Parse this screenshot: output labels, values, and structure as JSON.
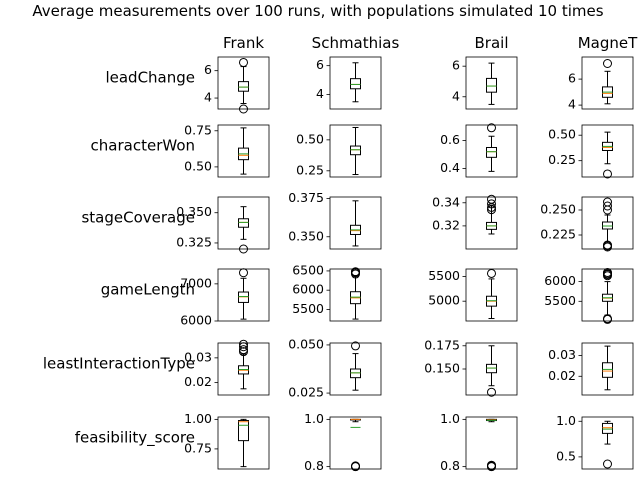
{
  "title": "Average measurements over 100 runs, with populations simulated 10 times",
  "chart_data": {
    "type": "box",
    "columns": [
      "Frank",
      "Schmathias",
      "Brail",
      "MagneT"
    ],
    "rows": [
      "leadChange",
      "characterWon",
      "stageCoverage",
      "gameLength",
      "leastInteractionType",
      "feasibility_score"
    ],
    "panels": [
      [
        {
          "ylim": [
            3.2,
            7.0
          ],
          "ticks": [
            4,
            6
          ],
          "tick_labels": [
            "4",
            "6"
          ],
          "whislo": 3.6,
          "q1": 4.5,
          "med": 4.8,
          "mean": 4.8,
          "q3": 5.2,
          "whishi": 6.3,
          "fliers": [
            3.2,
            6.6
          ]
        },
        {
          "ylim": [
            3.0,
            6.6
          ],
          "ticks": [
            4,
            6
          ],
          "tick_labels": [
            "4",
            "6"
          ],
          "whislo": 3.5,
          "q1": 4.4,
          "med": 4.7,
          "mean": 4.7,
          "q3": 5.1,
          "whishi": 6.2,
          "fliers": []
        },
        {
          "ylim": [
            3.2,
            6.6
          ],
          "ticks": [
            4,
            6
          ],
          "tick_labels": [
            "4",
            "6"
          ],
          "whislo": 3.5,
          "q1": 4.3,
          "med": 4.7,
          "mean": 4.7,
          "q3": 5.2,
          "whishi": 6.2,
          "fliers": []
        },
        {
          "ylim": [
            3.7,
            7.7
          ],
          "ticks": [
            4,
            6
          ],
          "tick_labels": [
            "4",
            "6"
          ],
          "whislo": 4.1,
          "q1": 4.6,
          "med": 4.9,
          "mean": 5.0,
          "q3": 5.4,
          "whishi": 6.6,
          "fliers": [
            7.2
          ]
        }
      ],
      [
        {
          "ylim": [
            0.43,
            0.79
          ],
          "ticks": [
            0.5,
            0.75
          ],
          "tick_labels": [
            "0.50",
            "0.75"
          ],
          "whislo": 0.45,
          "q1": 0.55,
          "med": 0.58,
          "mean": 0.59,
          "q3": 0.63,
          "whishi": 0.77,
          "fliers": []
        },
        {
          "ylim": [
            0.2,
            0.62
          ],
          "ticks": [
            0.25,
            0.5
          ],
          "tick_labels": [
            "0.25",
            "0.50"
          ],
          "whislo": 0.22,
          "q1": 0.38,
          "med": 0.42,
          "mean": 0.42,
          "q3": 0.45,
          "whishi": 0.6,
          "fliers": []
        },
        {
          "ylim": [
            0.34,
            0.71
          ],
          "ticks": [
            0.4,
            0.6
          ],
          "tick_labels": [
            "0.4",
            "0.6"
          ],
          "whislo": 0.38,
          "q1": 0.48,
          "med": 0.52,
          "mean": 0.52,
          "q3": 0.55,
          "whishi": 0.63,
          "fliers": [
            0.69
          ]
        },
        {
          "ylim": [
            0.09,
            0.6
          ],
          "ticks": [
            0.25,
            0.5
          ],
          "tick_labels": [
            "0.25",
            "0.50"
          ],
          "whislo": 0.22,
          "q1": 0.35,
          "med": 0.38,
          "mean": 0.39,
          "q3": 0.43,
          "whishi": 0.53,
          "fliers": [
            0.12
          ]
        }
      ],
      [
        {
          "ylim": [
            0.32,
            0.363
          ],
          "ticks": [
            0.325,
            0.35
          ],
          "tick_labels": [
            "0.325",
            "0.350"
          ],
          "whislo": 0.328,
          "q1": 0.338,
          "med": 0.342,
          "mean": 0.342,
          "q3": 0.345,
          "whishi": 0.355,
          "fliers": [
            0.32
          ]
        },
        {
          "ylim": [
            0.342,
            0.376
          ],
          "ticks": [
            0.35,
            0.375
          ],
          "tick_labels": [
            "0.350",
            "0.375"
          ],
          "whislo": 0.344,
          "q1": 0.3515,
          "med": 0.354,
          "mean": 0.3545,
          "q3": 0.3575,
          "whishi": 0.3735,
          "fliers": []
        },
        {
          "ylim": [
            0.3,
            0.345
          ],
          "ticks": [
            0.32,
            0.34
          ],
          "tick_labels": [
            "0.32",
            "0.34"
          ],
          "whislo": 0.313,
          "q1": 0.317,
          "med": 0.32,
          "mean": 0.32,
          "q3": 0.323,
          "whishi": 0.338,
          "fliers": [
            0.334,
            0.336,
            0.339,
            0.343
          ]
        },
        {
          "ylim": [
            0.211,
            0.263
          ],
          "ticks": [
            0.225,
            0.25
          ],
          "tick_labels": [
            "0.225",
            "0.250"
          ],
          "whislo": 0.218,
          "q1": 0.231,
          "med": 0.234,
          "mean": 0.234,
          "q3": 0.238,
          "whishi": 0.245,
          "fliers": [
            0.213,
            0.214,
            0.215,
            0.25,
            0.254,
            0.258
          ]
        }
      ],
      [
        {
          "ylim": [
            6000,
            7400
          ],
          "ticks": [
            6000,
            7000
          ],
          "tick_labels": [
            "6000",
            "7000"
          ],
          "whislo": 6050,
          "q1": 6500,
          "med": 6650,
          "mean": 6660,
          "q3": 6780,
          "whishi": 7150,
          "fliers": [
            7300
          ]
        },
        {
          "ylim": [
            5200,
            6550
          ],
          "ticks": [
            5500,
            6000,
            6500
          ],
          "tick_labels": [
            "5500",
            "6000",
            "6500"
          ],
          "whislo": 5250,
          "q1": 5650,
          "med": 5800,
          "mean": 5820,
          "q3": 5960,
          "whishi": 6380,
          "fliers": [
            6420,
            6450,
            6470,
            6480
          ]
        },
        {
          "ylim": [
            4600,
            5650
          ],
          "ticks": [
            5000,
            5500
          ],
          "tick_labels": [
            "5000",
            "5500"
          ],
          "whislo": 4650,
          "q1": 4900,
          "med": 5000,
          "mean": 5010,
          "q3": 5100,
          "whishi": 5450,
          "fliers": [
            5560
          ]
        },
        {
          "ylim": [
            5000,
            6320
          ],
          "ticks": [
            5500,
            6000
          ],
          "tick_labels": [
            "5500",
            "6000"
          ],
          "whislo": 5150,
          "q1": 5500,
          "med": 5580,
          "mean": 5590,
          "q3": 5680,
          "whishi": 6000,
          "fliers": [
            5040,
            5060,
            6150,
            6180,
            6200,
            6230
          ]
        }
      ],
      [
        {
          "ylim": [
            0.015,
            0.036
          ],
          "ticks": [
            0.02,
            0.03
          ],
          "tick_labels": [
            "0.02",
            "0.03"
          ],
          "whislo": 0.0175,
          "q1": 0.0235,
          "med": 0.025,
          "mean": 0.0253,
          "q3": 0.0268,
          "whishi": 0.0315,
          "fliers": [
            0.0325,
            0.0333,
            0.0345,
            0.0355
          ]
        },
        {
          "ylim": [
            0.024,
            0.051
          ],
          "ticks": [
            0.025,
            0.05
          ],
          "tick_labels": [
            "0.025",
            "0.050"
          ],
          "whislo": 0.0265,
          "q1": 0.033,
          "med": 0.0355,
          "mean": 0.0355,
          "q3": 0.0375,
          "whishi": 0.0455,
          "fliers": [
            0.0495
          ]
        },
        {
          "ylim": [
            0.122,
            0.178
          ],
          "ticks": [
            0.15,
            0.175
          ],
          "tick_labels": [
            "0.150",
            "0.175"
          ],
          "whislo": 0.132,
          "q1": 0.146,
          "med": 0.151,
          "mean": 0.151,
          "q3": 0.155,
          "whishi": 0.175,
          "fliers": [
            0.125
          ]
        },
        {
          "ylim": [
            0.011,
            0.036
          ],
          "ticks": [
            0.02,
            0.03
          ],
          "tick_labels": [
            "0.02",
            "0.03"
          ],
          "whislo": 0.0135,
          "q1": 0.0195,
          "med": 0.0225,
          "mean": 0.0233,
          "q3": 0.0265,
          "whishi": 0.0345,
          "fliers": []
        }
      ],
      [
        {
          "ylim": [
            0.58,
            1.02
          ],
          "ticks": [
            0.75,
            1.0
          ],
          "tick_labels": [
            "0.75",
            "1.00"
          ],
          "whislo": 0.6,
          "q1": 0.82,
          "med": 0.98,
          "mean": 0.95,
          "q3": 0.99,
          "whishi": 1.0,
          "fliers": []
        },
        {
          "ylim": [
            0.79,
            1.01
          ],
          "ticks": [
            0.8,
            1.0
          ],
          "tick_labels": [
            "0.8",
            "1.0"
          ],
          "whislo": 0.99,
          "q1": 0.998,
          "med": 1.0,
          "mean": 0.966,
          "q3": 1.0,
          "whishi": 1.0,
          "fliers": [
            0.8,
            0.801,
            0.802,
            0.803
          ]
        },
        {
          "ylim": [
            0.79,
            1.01
          ],
          "ticks": [
            0.8,
            1.0
          ],
          "tick_labels": [
            "0.8",
            "1.0"
          ],
          "whislo": 0.99,
          "q1": 0.995,
          "med": 0.998,
          "mean": 0.996,
          "q3": 1.0,
          "whishi": 1.0,
          "fliers": [
            0.8,
            0.802,
            0.804,
            0.806
          ]
        },
        {
          "ylim": [
            0.33,
            1.06
          ],
          "ticks": [
            0.5,
            1.0
          ],
          "tick_labels": [
            "0.5",
            "1.0"
          ],
          "whislo": 0.68,
          "q1": 0.83,
          "med": 0.91,
          "mean": 0.89,
          "q3": 0.97,
          "whishi": 1.0,
          "fliers": [
            0.4
          ]
        }
      ]
    ]
  }
}
